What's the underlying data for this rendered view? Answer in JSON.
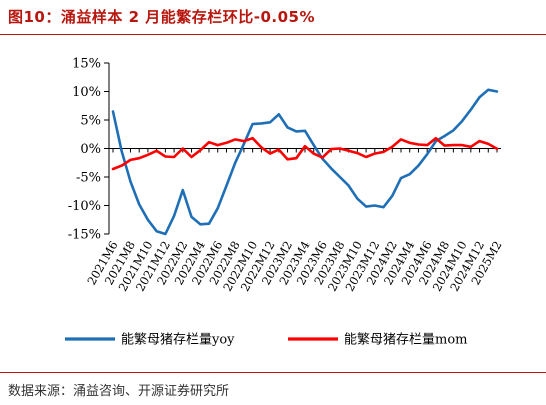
{
  "figure": {
    "title": "图10：涌益样本 2 月能繁存栏环比-0.05%",
    "source": "数据来源：涌益咨询、开源证券研究所"
  },
  "colors": {
    "yoy": "#1f6fb7",
    "mom": "#ff0000",
    "accent": "#b8170f"
  },
  "chart_data": {
    "type": "line",
    "title": "涌益样本 2 月能繁存栏环比-0.05%",
    "xlabel": "",
    "ylabel": "",
    "ylim": [
      -15,
      15
    ],
    "yticks": [
      -15,
      -10,
      -5,
      0,
      5,
      10,
      15
    ],
    "ytick_labels": [
      "-15%",
      "-10%",
      "-5%",
      "0%",
      "5%",
      "10%",
      "15%"
    ],
    "grid": false,
    "legend": "bottom",
    "x": [
      "2021M6",
      "2021M7",
      "2021M8",
      "2021M9",
      "2021M10",
      "2021M11",
      "2021M12",
      "2022M1",
      "2022M2",
      "2022M3",
      "2022M4",
      "2022M5",
      "2022M6",
      "2022M7",
      "2022M8",
      "2022M9",
      "2022M10",
      "2022M11",
      "2022M12",
      "2023M1",
      "2023M2",
      "2023M3",
      "2023M4",
      "2023M5",
      "2023M6",
      "2023M7",
      "2023M8",
      "2023M9",
      "2023M10",
      "2023M11",
      "2023M12",
      "2024M1",
      "2024M2",
      "2024M3",
      "2024M4",
      "2024M5",
      "2024M6",
      "2024M7",
      "2024M8",
      "2024M9",
      "2024M10",
      "2024M11",
      "2024M12",
      "2025M1",
      "2025M2"
    ],
    "xtick_labels": [
      "2021M6",
      "2021M8",
      "2021M10",
      "2021M12",
      "2022M2",
      "2022M4",
      "2022M6",
      "2022M8",
      "2022M10",
      "2022M12",
      "2023M2",
      "2023M4",
      "2023M6",
      "2023M8",
      "2023M10",
      "2023M12",
      "2024M2",
      "2024M4",
      "2024M6",
      "2024M8",
      "2024M10",
      "2024M12",
      "2025M2"
    ],
    "series": [
      {
        "name": "能繁母猪存栏量yoy",
        "color": "#1f6fb7",
        "values": [
          6.5,
          -0.5,
          -5.8,
          -9.8,
          -12.5,
          -14.5,
          -15.0,
          -11.8,
          -7.3,
          -12.0,
          -13.3,
          -13.2,
          -10.5,
          -6.5,
          -2.5,
          0.8,
          4.3,
          4.4,
          4.6,
          6.0,
          3.7,
          3.0,
          3.1,
          0.6,
          -1.8,
          -3.5,
          -5.0,
          -6.5,
          -8.8,
          -10.2,
          -10.0,
          -10.3,
          -8.3,
          -5.2,
          -4.5,
          -3.0,
          -1.0,
          1.3,
          2.2,
          3.2,
          4.8,
          6.8,
          9.0,
          10.3,
          10.0
        ]
      },
      {
        "name": "能繁母猪存栏量mom",
        "color": "#ff0000",
        "values": [
          -3.6,
          -3.0,
          -2.0,
          -1.7,
          -1.1,
          -0.4,
          -1.4,
          -1.5,
          0.0,
          -1.5,
          -0.3,
          1.1,
          0.6,
          1.0,
          1.6,
          1.3,
          1.8,
          0.2,
          -0.9,
          -0.2,
          -1.9,
          -1.7,
          0.4,
          -0.9,
          -1.6,
          -0.1,
          0.0,
          -0.4,
          -0.8,
          -1.5,
          -0.9,
          -0.6,
          0.3,
          1.6,
          1.0,
          0.7,
          0.6,
          1.8,
          0.5,
          0.6,
          0.6,
          0.3,
          1.3,
          0.8,
          -0.05
        ]
      }
    ]
  }
}
